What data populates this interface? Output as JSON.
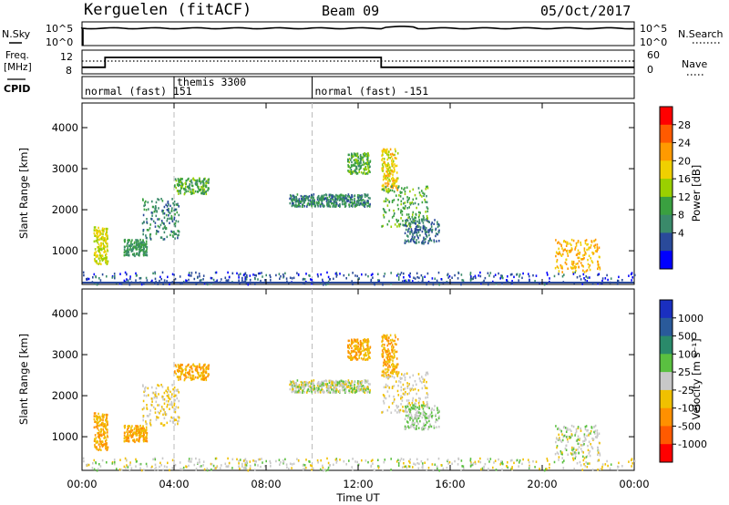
{
  "header": {
    "station": "Kerguelen (fitACF)",
    "beam": "Beam 09",
    "date": "05/Oct/2017"
  },
  "strip_noise": {
    "left_label": "N.Sky",
    "left_ticks": [
      "10^5",
      "10^0"
    ],
    "right_ticks": [
      "10^5",
      "10^0"
    ],
    "right_label": "N.Search"
  },
  "strip_freq": {
    "left_label_1": "Freq.",
    "left_label_2": "[MHz]",
    "left_ticks": [
      "12",
      "8"
    ],
    "right_ticks": [
      "60",
      "0"
    ],
    "right_label": "Nave"
  },
  "strip_cpid": {
    "label": "CPID",
    "segments": [
      {
        "text": "normal (fast) 151",
        "start": 0.0
      },
      {
        "text": "themis 3300",
        "start": 4.0
      },
      {
        "text": "normal (fast) -151",
        "start": 10.0
      }
    ]
  },
  "panels": {
    "power": {
      "ylabel": "Slant Range [km]",
      "cbar_label": "Power [dB]",
      "cbar_ticks": [
        "28",
        "24",
        "20",
        "16",
        "12",
        "8",
        "4"
      ],
      "cbar_colors": [
        "#ff0000",
        "#ff5a00",
        "#ff9a00",
        "#f0d000",
        "#9ad000",
        "#3aa040",
        "#3a8a6a",
        "#2a4a9a",
        "#0000ff"
      ]
    },
    "velocity": {
      "ylabel": "Slant Range [km]",
      "cbar_label": "Velocity [m s⁻¹]",
      "cbar_ticks": [
        "1000",
        "500",
        "100",
        "25",
        "-25",
        "-100",
        "-500",
        "-1000"
      ],
      "cbar_colors": [
        "#1a2fc0",
        "#2a5a9a",
        "#2a8a6a",
        "#5ac040",
        "#c8c8c8",
        "#f0c000",
        "#ff9000",
        "#ff5a00",
        "#ff0000"
      ]
    }
  },
  "xaxis": {
    "label": "Time UT",
    "ticks": [
      "00:00",
      "04:00",
      "08:00",
      "12:00",
      "16:00",
      "20:00",
      "00:00"
    ]
  },
  "chart_data": {
    "type": "heatmap",
    "x_range_hours": [
      0,
      24
    ],
    "y_range_km": [
      180,
      4600
    ],
    "yticks_km": [
      1000,
      2000,
      3000,
      4000
    ],
    "ytick_labels": [
      "1000",
      "2000",
      "3000",
      "4000"
    ],
    "frequency_mhz_steps": [
      {
        "t_start": 0.0,
        "t_end": 1.0,
        "freq": 9.2
      },
      {
        "t_start": 1.0,
        "t_end": 13.0,
        "freq": 11.0
      },
      {
        "t_start": 13.0,
        "t_end": 24.0,
        "freq": 9.2
      }
    ],
    "echo_regions": [
      {
        "t": [
          0.5,
          1.1
        ],
        "r": [
          700,
          1600
        ],
        "power_db": 20,
        "velocity": -100
      },
      {
        "t": [
          1.8,
          2.8
        ],
        "r": [
          900,
          1300
        ],
        "power_db": 12,
        "velocity": -100
      },
      {
        "t": [
          2.6,
          4.2
        ],
        "r": [
          1300,
          2300
        ],
        "power_db": 10,
        "velocity": -25
      },
      {
        "t": [
          4.0,
          5.5
        ],
        "r": [
          2400,
          2800
        ],
        "power_db": 14,
        "velocity": -100
      },
      {
        "t": [
          9.0,
          12.5
        ],
        "r": [
          2100,
          2400
        ],
        "power_db": 10,
        "velocity": 0
      },
      {
        "t": [
          11.5,
          12.5
        ],
        "r": [
          2900,
          3400
        ],
        "power_db": 14,
        "velocity": -100
      },
      {
        "t": [
          13.0,
          13.7
        ],
        "r": [
          2500,
          3500
        ],
        "power_db": 22,
        "velocity": -100
      },
      {
        "t": [
          13.0,
          15.0
        ],
        "r": [
          1600,
          2600
        ],
        "power_db": 14,
        "velocity": -25
      },
      {
        "t": [
          14.0,
          15.5
        ],
        "r": [
          1200,
          1800
        ],
        "power_db": 8,
        "velocity": 25
      },
      {
        "t": [
          20.5,
          22.5
        ],
        "r": [
          500,
          1300
        ],
        "power_db": 24,
        "velocity": 0
      },
      {
        "t": [
          0.0,
          24.0
        ],
        "r": [
          200,
          500
        ],
        "power_db": 6,
        "velocity": 0
      }
    ]
  }
}
